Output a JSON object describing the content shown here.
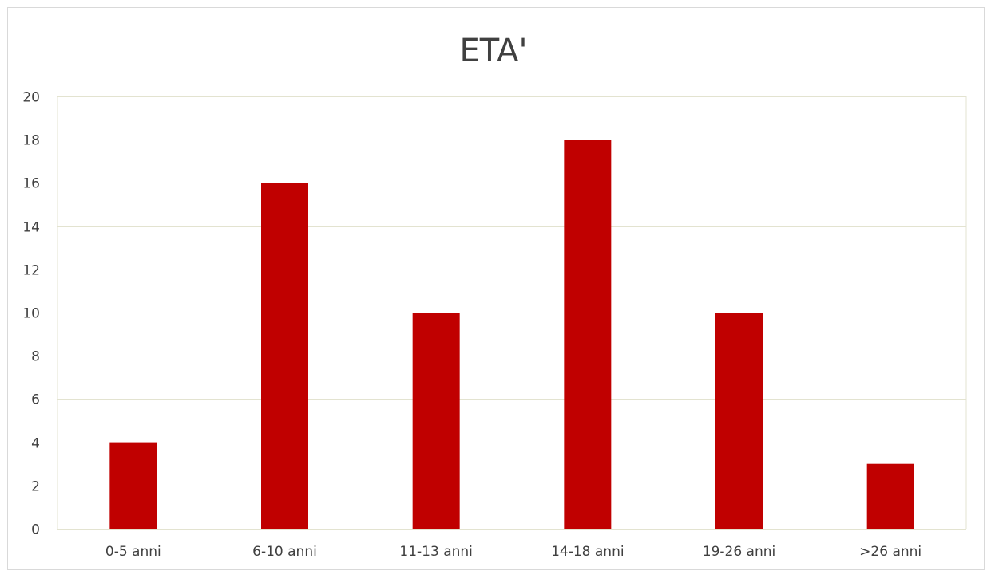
{
  "chart_data": {
    "type": "bar",
    "title": "ETA'",
    "categories": [
      "0-5 anni",
      "6-10 anni",
      "11-13 anni",
      "14-18 anni",
      "19-26 anni",
      ">26 anni"
    ],
    "values": [
      4,
      16,
      10,
      18,
      10,
      3
    ],
    "ylim": [
      0,
      20
    ],
    "yticks": [
      0,
      2,
      4,
      6,
      8,
      10,
      12,
      14,
      16,
      18,
      20
    ],
    "xlabel": "",
    "ylabel": "",
    "grid": true,
    "colors": {
      "bar": "#c00000",
      "grid": "#e3e3d0",
      "text": "#404040"
    }
  }
}
